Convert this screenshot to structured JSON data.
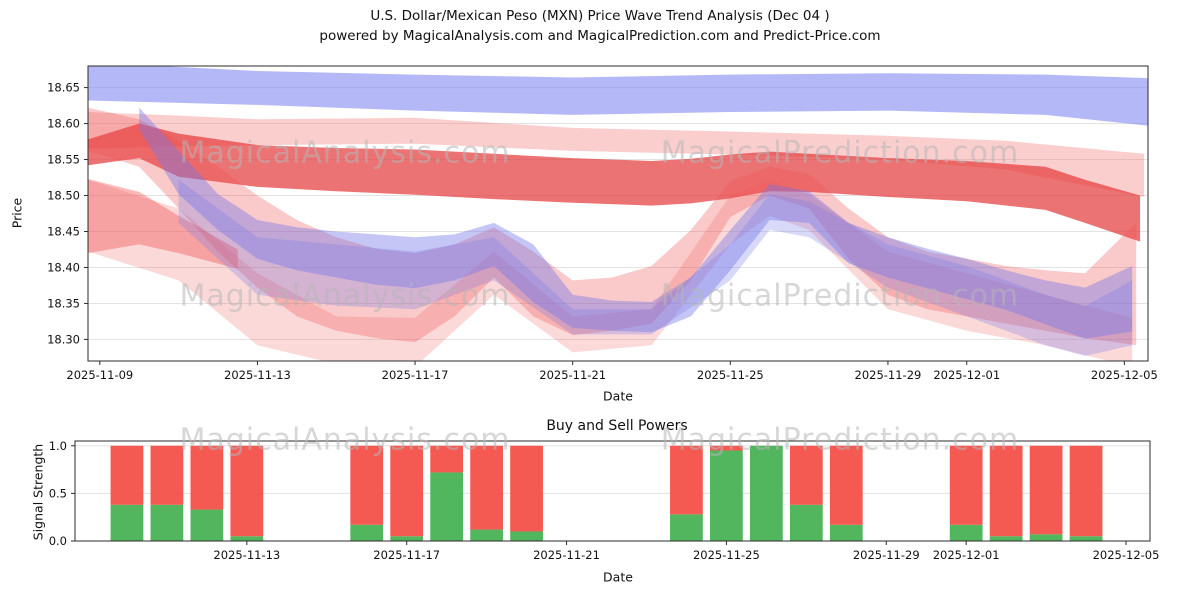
{
  "title": {
    "line1": "U.S. Dollar/Mexican Peso (MXN) Price Wave Trend Analysis (Dec 04 )",
    "line2": "powered by MagicalAnalysis.com and MagicalPrediction.com and Predict-Price.com"
  },
  "watermarks": {
    "left": "MagicalAnalysis.com",
    "right": "MagicalPrediction.com"
  },
  "chart_data": [
    {
      "type": "area",
      "title": "",
      "xlabel": "Date",
      "ylabel": "Price",
      "ylim": [
        18.27,
        18.68
      ],
      "xlim_days": [
        -0.3,
        26.6
      ],
      "grid": "horizontal",
      "y_ticks": [
        {
          "v": 18.3,
          "label": "18.30"
        },
        {
          "v": 18.35,
          "label": "18.35"
        },
        {
          "v": 18.4,
          "label": "18.40"
        },
        {
          "v": 18.45,
          "label": "18.45"
        },
        {
          "v": 18.5,
          "label": "18.50"
        },
        {
          "v": 18.55,
          "label": "18.55"
        },
        {
          "v": 18.6,
          "label": "18.60"
        },
        {
          "v": 18.65,
          "label": "18.65"
        }
      ],
      "x_ticks": [
        {
          "day": 0,
          "label": "2025-11-09"
        },
        {
          "day": 4,
          "label": "2025-11-13"
        },
        {
          "day": 8,
          "label": "2025-11-17"
        },
        {
          "day": 12,
          "label": "2025-11-21"
        },
        {
          "day": 16,
          "label": "2025-11-25"
        },
        {
          "day": 20,
          "label": "2025-11-29"
        },
        {
          "day": 22,
          "label": "2025-12-01"
        },
        {
          "day": 26,
          "label": "2025-12-05"
        }
      ],
      "bands": [
        {
          "name": "upper-blue-channel",
          "color": "#8289f0",
          "opacity": 0.6,
          "x": [
            -0.3,
            4,
            8,
            12,
            16,
            20,
            24,
            26.6
          ],
          "upper": [
            18.685,
            18.673,
            18.668,
            18.664,
            18.668,
            18.67,
            18.668,
            18.663
          ],
          "lower": [
            18.632,
            18.626,
            18.618,
            18.612,
            18.616,
            18.618,
            18.612,
            18.597
          ]
        },
        {
          "name": "upper-thin-red-band",
          "color": "#f26b6b",
          "opacity": 0.33,
          "x": [
            -0.3,
            2,
            4,
            8,
            12,
            16,
            20,
            23,
            26.5
          ],
          "upper": [
            18.616,
            18.611,
            18.606,
            18.608,
            18.594,
            18.589,
            18.583,
            18.576,
            18.558
          ],
          "lower": [
            18.565,
            18.568,
            18.57,
            18.572,
            18.562,
            18.557,
            18.55,
            18.536,
            18.498
          ]
        },
        {
          "name": "dark-red-core-ribbon",
          "color": "#e43d3d",
          "opacity": 0.72,
          "x": [
            -0.3,
            1,
            2,
            4,
            6,
            8,
            10,
            12,
            14,
            15,
            16,
            17,
            18,
            20,
            22,
            24,
            25,
            26.4
          ],
          "upper": [
            18.578,
            18.6,
            18.586,
            18.57,
            18.566,
            18.564,
            18.558,
            18.552,
            18.548,
            18.551,
            18.557,
            18.561,
            18.558,
            18.552,
            18.548,
            18.54,
            18.522,
            18.5
          ],
          "lower": [
            18.542,
            18.552,
            18.526,
            18.512,
            18.506,
            18.501,
            18.495,
            18.49,
            18.486,
            18.489,
            18.496,
            18.506,
            18.505,
            18.498,
            18.492,
            18.48,
            18.462,
            18.436
          ]
        },
        {
          "name": "wide-red-fan",
          "color": "#f05050",
          "opacity": 0.3,
          "x": [
            -0.3,
            1,
            2,
            3,
            4,
            5,
            6,
            7,
            8,
            9,
            10,
            11,
            12,
            13,
            14,
            15,
            16,
            17,
            18,
            19,
            20,
            21,
            22,
            23,
            24,
            25,
            26.3
          ],
          "upper": [
            18.622,
            18.606,
            18.576,
            18.54,
            18.5,
            18.466,
            18.442,
            18.426,
            18.42,
            18.432,
            18.456,
            18.422,
            18.382,
            18.386,
            18.402,
            18.452,
            18.52,
            18.54,
            18.53,
            18.482,
            18.442,
            18.422,
            18.412,
            18.402,
            18.396,
            18.392,
            18.462
          ],
          "lower": [
            18.562,
            18.54,
            18.482,
            18.422,
            18.372,
            18.332,
            18.312,
            18.302,
            18.296,
            18.332,
            18.386,
            18.332,
            18.306,
            18.312,
            18.322,
            18.382,
            18.47,
            18.5,
            18.482,
            18.412,
            18.362,
            18.342,
            18.332,
            18.322,
            18.312,
            18.302,
            18.292
          ]
        },
        {
          "name": "low-red-fan",
          "color": "#f05050",
          "opacity": 0.22,
          "x": [
            -0.3,
            2,
            4,
            6,
            8,
            10,
            12,
            14,
            16,
            17,
            18,
            20,
            22,
            24,
            26.2
          ],
          "upper": [
            18.522,
            18.482,
            18.392,
            18.332,
            18.33,
            18.422,
            18.332,
            18.342,
            18.5,
            18.522,
            18.502,
            18.422,
            18.392,
            18.362,
            18.33
          ],
          "lower": [
            18.422,
            18.382,
            18.292,
            18.266,
            18.262,
            18.362,
            18.282,
            18.292,
            18.432,
            18.472,
            18.452,
            18.342,
            18.312,
            18.292,
            18.262
          ]
        },
        {
          "name": "left-red-blob",
          "color": "#f05050",
          "opacity": 0.4,
          "x": [
            -0.3,
            1,
            2,
            3.5
          ],
          "upper": [
            18.523,
            18.505,
            18.472,
            18.425
          ],
          "lower": [
            18.42,
            18.432,
            18.42,
            18.398
          ]
        },
        {
          "name": "blue-mid-ribbon",
          "color": "#7478e8",
          "opacity": 0.42,
          "x": [
            1,
            2,
            3,
            4,
            5,
            6,
            7,
            8,
            9,
            10,
            11,
            12,
            13,
            14,
            15,
            16,
            17,
            18,
            19,
            20,
            21,
            22,
            23,
            24,
            25,
            26.2
          ],
          "upper": [
            18.622,
            18.562,
            18.502,
            18.466,
            18.456,
            18.45,
            18.446,
            18.442,
            18.446,
            18.462,
            18.432,
            18.362,
            18.354,
            18.352,
            18.386,
            18.452,
            18.516,
            18.506,
            18.462,
            18.442,
            18.426,
            18.412,
            18.396,
            18.382,
            18.372,
            18.402
          ],
          "lower": [
            18.592,
            18.502,
            18.452,
            18.412,
            18.396,
            18.386,
            18.376,
            18.371,
            18.382,
            18.402,
            18.352,
            18.316,
            18.312,
            18.31,
            18.332,
            18.396,
            18.466,
            18.462,
            18.406,
            18.386,
            18.371,
            18.356,
            18.341,
            18.321,
            18.301,
            18.311
          ]
        },
        {
          "name": "blue-low-fan",
          "color": "#7478e8",
          "opacity": 0.28,
          "x": [
            2,
            4,
            6,
            8,
            10,
            12,
            14,
            16,
            17,
            18,
            20,
            22,
            24,
            25,
            26.2
          ],
          "upper": [
            18.522,
            18.442,
            18.432,
            18.422,
            18.442,
            18.342,
            18.342,
            18.432,
            18.502,
            18.492,
            18.432,
            18.402,
            18.362,
            18.346,
            18.382
          ],
          "lower": [
            18.462,
            18.362,
            18.347,
            18.342,
            18.382,
            18.307,
            18.307,
            18.382,
            18.452,
            18.442,
            18.372,
            18.332,
            18.292,
            18.277,
            18.292
          ]
        }
      ]
    },
    {
      "type": "bar",
      "title": "Buy and Sell Powers",
      "xlabel": "Date",
      "ylabel": "Signal Strength",
      "ylim": [
        0,
        1.05
      ],
      "xlim_days": [
        -0.3,
        26.6
      ],
      "grid": "horizontal",
      "bar_width_days": 0.82,
      "colors": {
        "buy": "#3fae4d",
        "sell": "#f4483f"
      },
      "y_ticks": [
        {
          "v": 0.0,
          "label": "0.0"
        },
        {
          "v": 0.5,
          "label": "0.5"
        },
        {
          "v": 1.0,
          "label": "1.0"
        }
      ],
      "x_ticks": [
        {
          "day": 4,
          "label": "2025-11-13"
        },
        {
          "day": 8,
          "label": "2025-11-17"
        },
        {
          "day": 12,
          "label": "2025-11-21"
        },
        {
          "day": 16,
          "label": "2025-11-25"
        },
        {
          "day": 20,
          "label": "2025-11-29"
        },
        {
          "day": 22,
          "label": "2025-12-01"
        },
        {
          "day": 26,
          "label": "2025-12-05"
        }
      ],
      "bars": [
        {
          "day": 1,
          "buy": 0.38,
          "sell": 0.62
        },
        {
          "day": 2,
          "buy": 0.38,
          "sell": 0.62
        },
        {
          "day": 3,
          "buy": 0.33,
          "sell": 0.67
        },
        {
          "day": 4,
          "buy": 0.05,
          "sell": 0.95
        },
        {
          "day": 7,
          "buy": 0.17,
          "sell": 0.83
        },
        {
          "day": 8,
          "buy": 0.05,
          "sell": 0.95
        },
        {
          "day": 9,
          "buy": 0.72,
          "sell": 0.28
        },
        {
          "day": 10,
          "buy": 0.12,
          "sell": 0.88
        },
        {
          "day": 11,
          "buy": 0.1,
          "sell": 0.9
        },
        {
          "day": 15,
          "buy": 0.28,
          "sell": 0.72
        },
        {
          "day": 16,
          "buy": 0.95,
          "sell": 0.05
        },
        {
          "day": 17,
          "buy": 1.0,
          "sell": 0.0
        },
        {
          "day": 18,
          "buy": 0.38,
          "sell": 0.62
        },
        {
          "day": 19,
          "buy": 0.17,
          "sell": 0.83
        },
        {
          "day": 22,
          "buy": 0.17,
          "sell": 0.83
        },
        {
          "day": 23,
          "buy": 0.05,
          "sell": 0.95
        },
        {
          "day": 24,
          "buy": 0.07,
          "sell": 0.93
        },
        {
          "day": 25,
          "buy": 0.05,
          "sell": 0.95
        }
      ]
    }
  ]
}
